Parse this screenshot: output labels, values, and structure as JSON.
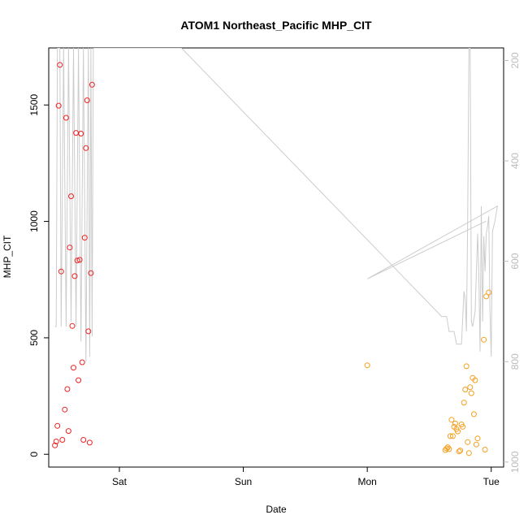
{
  "chart_data": {
    "type": "scatter",
    "title": "ATOM1 Northeast_Pacific MHP_CIT",
    "xlabel": "Date",
    "ylabel": "MHP_CIT",
    "x_unit": "days since Friday 00:00",
    "xlim": [
      0.43,
      4.1
    ],
    "ylim": [
      -55,
      1745
    ],
    "x_ticks": [
      {
        "label": "Sat",
        "value": 1
      },
      {
        "label": "Sun",
        "value": 2
      },
      {
        "label": "Mon",
        "value": 3
      },
      {
        "label": "Tue",
        "value": 4
      }
    ],
    "y_ticks": [
      0,
      500,
      1000,
      1500
    ],
    "right_axis": {
      "reversed": true,
      "ylim": [
        1010,
        175
      ],
      "ticks": [
        200,
        400,
        600,
        800,
        1000
      ],
      "color": "#bbbbbb"
    },
    "series": [
      {
        "name": "red",
        "color": "#ee2222",
        "points": [
          [
            0.48,
            38
          ],
          [
            0.49,
            55
          ],
          [
            0.5,
            122
          ],
          [
            0.51,
            1497
          ],
          [
            0.52,
            1672
          ],
          [
            0.53,
            785
          ],
          [
            0.54,
            62
          ],
          [
            0.56,
            192
          ],
          [
            0.57,
            1445
          ],
          [
            0.58,
            280
          ],
          [
            0.59,
            100
          ],
          [
            0.6,
            888
          ],
          [
            0.61,
            1108
          ],
          [
            0.62,
            551
          ],
          [
            0.63,
            372
          ],
          [
            0.64,
            765
          ],
          [
            0.65,
            1380
          ],
          [
            0.66,
            832
          ],
          [
            0.67,
            318
          ],
          [
            0.68,
            835
          ],
          [
            0.69,
            1377
          ],
          [
            0.7,
            395
          ],
          [
            0.71,
            62
          ],
          [
            0.72,
            930
          ],
          [
            0.73,
            1315
          ],
          [
            0.74,
            1520
          ],
          [
            0.75,
            528
          ],
          [
            0.76,
            50
          ],
          [
            0.77,
            778
          ],
          [
            0.78,
            1587
          ]
        ]
      },
      {
        "name": "orange",
        "color": "#f5a020",
        "points": [
          [
            3.0,
            382
          ],
          [
            3.63,
            18
          ],
          [
            3.64,
            25
          ],
          [
            3.65,
            30
          ],
          [
            3.66,
            22
          ],
          [
            3.67,
            78
          ],
          [
            3.68,
            148
          ],
          [
            3.69,
            78
          ],
          [
            3.7,
            118
          ],
          [
            3.71,
            132
          ],
          [
            3.72,
            108
          ],
          [
            3.73,
            98
          ],
          [
            3.74,
            12
          ],
          [
            3.75,
            16
          ],
          [
            3.76,
            128
          ],
          [
            3.77,
            118
          ],
          [
            3.78,
            222
          ],
          [
            3.79,
            278
          ],
          [
            3.8,
            378
          ],
          [
            3.81,
            52
          ],
          [
            3.82,
            5
          ],
          [
            3.83,
            288
          ],
          [
            3.84,
            262
          ],
          [
            3.85,
            328
          ],
          [
            3.86,
            172
          ],
          [
            3.87,
            318
          ],
          [
            3.88,
            42
          ],
          [
            3.89,
            68
          ],
          [
            3.94,
            492
          ],
          [
            3.95,
            20
          ],
          [
            3.96,
            678
          ],
          [
            3.98,
            695
          ]
        ]
      }
    ],
    "line_series": {
      "name": "gray",
      "color": "#cccccc",
      "axis": "right",
      "points": [
        [
          0.48,
          730
        ],
        [
          0.49,
          730
        ],
        [
          0.5,
          175
        ],
        [
          0.51,
          175
        ],
        [
          0.52,
          175
        ],
        [
          0.53,
          730
        ],
        [
          0.55,
          175
        ],
        [
          0.57,
          730
        ],
        [
          0.59,
          175
        ],
        [
          0.61,
          720
        ],
        [
          0.63,
          175
        ],
        [
          0.65,
          730
        ],
        [
          0.67,
          175
        ],
        [
          0.69,
          760
        ],
        [
          0.71,
          175
        ],
        [
          0.73,
          800
        ],
        [
          0.75,
          175
        ],
        [
          0.76,
          790
        ],
        [
          0.77,
          175
        ],
        [
          0.78,
          750
        ],
        [
          0.79,
          175
        ],
        [
          1.5,
          175
        ],
        [
          3.6,
          710
        ],
        [
          3.64,
          710
        ],
        [
          3.66,
          740
        ],
        [
          3.7,
          740
        ],
        [
          3.72,
          765
        ],
        [
          3.76,
          765
        ],
        [
          3.78,
          660
        ],
        [
          3.79,
          675
        ],
        [
          3.8,
          740
        ],
        [
          3.81,
          525
        ],
        [
          3.82,
          175
        ],
        [
          3.83,
          175
        ],
        [
          3.84,
          720
        ],
        [
          3.85,
          730
        ],
        [
          3.87,
          700
        ],
        [
          3.89,
          545
        ],
        [
          3.9,
          630
        ],
        [
          3.91,
          780
        ],
        [
          3.92,
          490
        ],
        [
          3.93,
          720
        ],
        [
          3.94,
          550
        ],
        [
          3.95,
          620
        ],
        [
          3.96,
          545
        ],
        [
          3.97,
          530
        ],
        [
          3.98,
          510
        ],
        [
          3.99,
          700
        ],
        [
          4.0,
          790
        ],
        [
          4.01,
          540
        ],
        [
          4.03,
          520
        ],
        [
          4.05,
          490
        ],
        [
          3.0,
          635
        ],
        [
          3.96,
          520
        ]
      ]
    },
    "grid": false,
    "legend": "none"
  }
}
